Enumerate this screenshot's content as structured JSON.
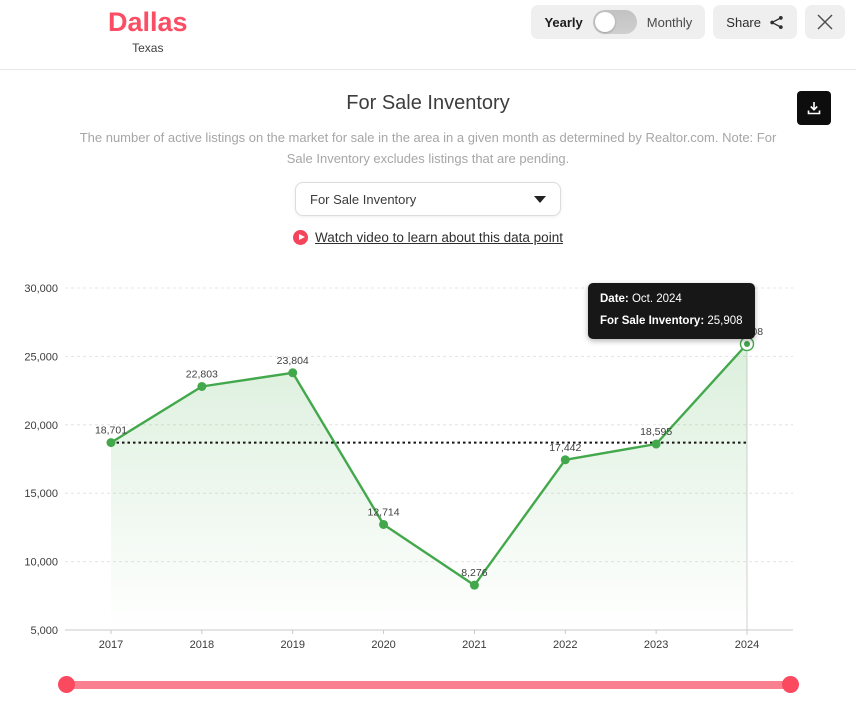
{
  "header": {
    "city": "Dallas",
    "state": "Texas",
    "toggle": {
      "left": "Yearly",
      "right": "Monthly",
      "selected": "Yearly"
    },
    "share_label": "Share"
  },
  "panel": {
    "title": "For Sale Inventory",
    "description": "The number of active listings on the market for sale in the area in a given month as determined by Realtor.com. Note: For\nSale Inventory excludes listings that are pending.",
    "dropdown": {
      "selected": "For Sale Inventory"
    },
    "video_link": "Watch video to learn about this data point"
  },
  "tooltip": {
    "date_label": "Date:",
    "date_value": "Oct. 2024",
    "series_label": "For Sale Inventory:",
    "series_value": "25,908"
  },
  "chart_data": {
    "type": "line",
    "title": "For Sale Inventory",
    "categories": [
      "2017",
      "2018",
      "2019",
      "2020",
      "2021",
      "2022",
      "2023",
      "2024"
    ],
    "values": [
      18701,
      22803,
      23804,
      12714,
      8276,
      17442,
      18595,
      25908
    ],
    "point_labels": [
      "18,701",
      "22,803",
      "23,804",
      "12,714",
      "8,276",
      "17,442",
      "18,595",
      "25,908"
    ],
    "xlabel": "",
    "ylabel": "",
    "ylim": [
      5000,
      30000
    ],
    "y_ticks": [
      5000,
      10000,
      15000,
      20000,
      25000,
      30000
    ],
    "y_tick_labels": [
      "5,000",
      "10,000",
      "15,000",
      "20,000",
      "25,000",
      "30,000"
    ],
    "grid": true,
    "legend": false,
    "reference_line_value": 18701,
    "highlight_index": 7,
    "highlight_date": "Oct. 2024",
    "line_color": "#43a84c",
    "fill_top": "rgba(76,175,80,0.20)",
    "fill_bottom": "rgba(76,175,80,0.0)"
  },
  "colors": {
    "accent_pink": "#fb4d63",
    "slider_track": "#f8808f",
    "green": "#43a84c",
    "tooltip_bg": "#171717",
    "grid_line": "#e4e4e4",
    "axis_line": "#c9c9c9"
  }
}
